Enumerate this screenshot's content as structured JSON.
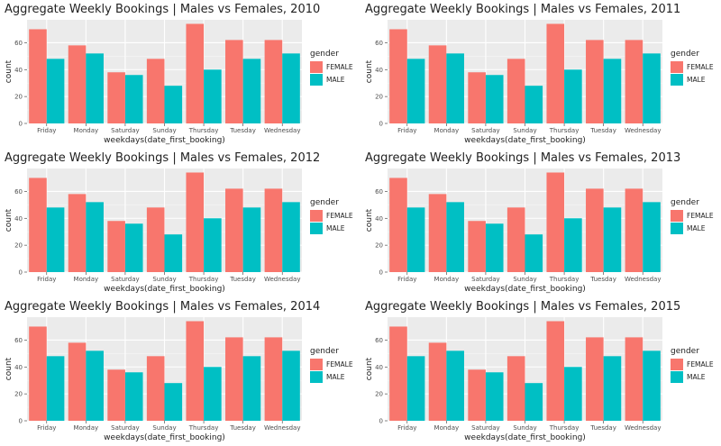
{
  "chart_data": [
    {
      "type": "bar",
      "title": "Aggregate Weekly Bookings |  Males vs Females, 2010",
      "xlabel": "weekdays(date_first_booking)",
      "ylabel": "count",
      "categories": [
        "Friday",
        "Monday",
        "Saturday",
        "Sunday",
        "Thursday",
        "Tuesday",
        "Wednesday"
      ],
      "series": [
        {
          "name": "FEMALE",
          "values": [
            70,
            58,
            38,
            48,
            74,
            62,
            62
          ]
        },
        {
          "name": "MALE",
          "values": [
            48,
            52,
            36,
            28,
            40,
            48,
            52
          ]
        }
      ],
      "yticks": [
        0,
        20,
        40,
        60
      ],
      "ylim": [
        0,
        77
      ],
      "grid": true,
      "legend_title": "gender",
      "legend_position": "right"
    },
    {
      "type": "bar",
      "title": "Aggregate Weekly Bookings |  Males vs Females, 2011",
      "xlabel": "weekdays(date_first_booking)",
      "ylabel": "count",
      "categories": [
        "Friday",
        "Monday",
        "Saturday",
        "Sunday",
        "Thursday",
        "Tuesday",
        "Wednesday"
      ],
      "series": [
        {
          "name": "FEMALE",
          "values": [
            70,
            58,
            38,
            48,
            74,
            62,
            62
          ]
        },
        {
          "name": "MALE",
          "values": [
            48,
            52,
            36,
            28,
            40,
            48,
            52
          ]
        }
      ],
      "yticks": [
        0,
        20,
        40,
        60
      ],
      "ylim": [
        0,
        77
      ],
      "grid": true,
      "legend_title": "gender",
      "legend_position": "right"
    },
    {
      "type": "bar",
      "title": "Aggregate Weekly Bookings |  Males vs Females, 2012",
      "xlabel": "weekdays(date_first_booking)",
      "ylabel": "count",
      "categories": [
        "Friday",
        "Monday",
        "Saturday",
        "Sunday",
        "Thursday",
        "Tuesday",
        "Wednesday"
      ],
      "series": [
        {
          "name": "FEMALE",
          "values": [
            70,
            58,
            38,
            48,
            74,
            62,
            62
          ]
        },
        {
          "name": "MALE",
          "values": [
            48,
            52,
            36,
            28,
            40,
            48,
            52
          ]
        }
      ],
      "yticks": [
        0,
        20,
        40,
        60
      ],
      "ylim": [
        0,
        77
      ],
      "grid": true,
      "legend_title": "gender",
      "legend_position": "right"
    },
    {
      "type": "bar",
      "title": "Aggregate Weekly Bookings |  Males vs Females, 2013",
      "xlabel": "weekdays(date_first_booking)",
      "ylabel": "count",
      "categories": [
        "Friday",
        "Monday",
        "Saturday",
        "Sunday",
        "Thursday",
        "Tuesday",
        "Wednesday"
      ],
      "series": [
        {
          "name": "FEMALE",
          "values": [
            70,
            58,
            38,
            48,
            74,
            62,
            62
          ]
        },
        {
          "name": "MALE",
          "values": [
            48,
            52,
            36,
            28,
            40,
            48,
            52
          ]
        }
      ],
      "yticks": [
        0,
        20,
        40,
        60
      ],
      "ylim": [
        0,
        77
      ],
      "grid": true,
      "legend_title": "gender",
      "legend_position": "right"
    },
    {
      "type": "bar",
      "title": "Aggregate Weekly Bookings |  Males vs Females, 2014",
      "xlabel": "weekdays(date_first_booking)",
      "ylabel": "count",
      "categories": [
        "Friday",
        "Monday",
        "Saturday",
        "Sunday",
        "Thursday",
        "Tuesday",
        "Wednesday"
      ],
      "series": [
        {
          "name": "FEMALE",
          "values": [
            70,
            58,
            38,
            48,
            74,
            62,
            62
          ]
        },
        {
          "name": "MALE",
          "values": [
            48,
            52,
            36,
            28,
            40,
            48,
            52
          ]
        }
      ],
      "yticks": [
        0,
        20,
        40,
        60
      ],
      "ylim": [
        0,
        77
      ],
      "grid": true,
      "legend_title": "gender",
      "legend_position": "right"
    },
    {
      "type": "bar",
      "title": "Aggregate Weekly Bookings |  Males vs Females, 2015",
      "xlabel": "weekdays(date_first_booking)",
      "ylabel": "count",
      "categories": [
        "Friday",
        "Monday",
        "Saturday",
        "Sunday",
        "Thursday",
        "Tuesday",
        "Wednesday"
      ],
      "series": [
        {
          "name": "FEMALE",
          "values": [
            70,
            58,
            38,
            48,
            74,
            62,
            62
          ]
        },
        {
          "name": "MALE",
          "values": [
            48,
            52,
            36,
            28,
            40,
            48,
            52
          ]
        }
      ],
      "yticks": [
        0,
        20,
        40,
        60
      ],
      "ylim": [
        0,
        77
      ],
      "grid": true,
      "legend_title": "gender",
      "legend_position": "right"
    }
  ],
  "colors": {
    "FEMALE": "#F8766D",
    "MALE": "#00BFC4",
    "panel_bg": "#EBEBEB",
    "grid_major": "#FFFFFF",
    "grid_minor": "#F5F5F5"
  }
}
